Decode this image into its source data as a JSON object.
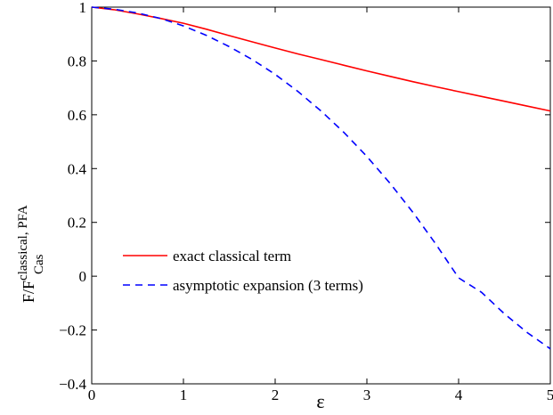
{
  "chart_data": {
    "type": "line",
    "xlabel": "ε",
    "ylabel": {
      "main": "F/F",
      "superscript": "classical, PFA",
      "subscript": "Cas"
    },
    "xlim": [
      0,
      5
    ],
    "ylim": [
      -0.4,
      1
    ],
    "xticks": [
      0,
      1,
      2,
      3,
      4,
      5
    ],
    "xtick_labels": [
      "0",
      "1",
      "2",
      "3",
      "4",
      "5"
    ],
    "yticks": [
      -0.4,
      -0.2,
      0,
      0.2,
      0.4,
      0.6,
      0.8,
      1
    ],
    "ytick_labels": [
      "−0.4",
      "−0.2",
      "0",
      "0.2",
      "0.4",
      "0.6",
      "0.8",
      "1"
    ],
    "grid": false,
    "legend_position": "lower-left",
    "series": [
      {
        "name": "exact classical term",
        "color": "#ff0000",
        "style": "solid",
        "x": [
          0,
          0.25,
          0.5,
          0.75,
          1,
          1.25,
          1.5,
          1.75,
          2,
          2.25,
          2.5,
          2.75,
          3,
          3.25,
          3.5,
          3.75,
          4,
          4.25,
          4.5,
          4.75,
          5
        ],
        "y": [
          1,
          0.99,
          0.975,
          0.958,
          0.94,
          0.918,
          0.894,
          0.871,
          0.848,
          0.826,
          0.805,
          0.784,
          0.763,
          0.743,
          0.723,
          0.704,
          0.686,
          0.668,
          0.65,
          0.632,
          0.614
        ]
      },
      {
        "name": "asymptotic expansion (3 terms)",
        "color": "#0000ff",
        "style": "dashed",
        "x": [
          0,
          0.25,
          0.5,
          0.75,
          1,
          1.25,
          1.5,
          1.75,
          2,
          2.25,
          2.5,
          2.75,
          3,
          3.25,
          3.5,
          3.75,
          4,
          4.25,
          4.5,
          4.75,
          5
        ],
        "y": [
          1,
          0.992,
          0.978,
          0.958,
          0.93,
          0.895,
          0.853,
          0.805,
          0.75,
          0.686,
          0.614,
          0.534,
          0.445,
          0.346,
          0.238,
          0.12,
          -0.006,
          -0.06,
          -0.14,
          -0.21,
          -0.27
        ]
      }
    ]
  }
}
